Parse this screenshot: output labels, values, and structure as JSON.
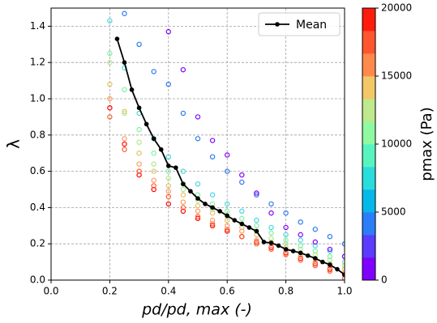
{
  "chart_data": {
    "type": "scatter",
    "x_label": "pd/pd, max (-)",
    "y_label": "λ",
    "xlim": [
      0,
      1.0
    ],
    "ylim": [
      0,
      1.5
    ],
    "xticks": [
      {
        "value": 0,
        "label": "0.0"
      },
      {
        "value": 0.2,
        "label": "0.2"
      },
      {
        "value": 0.4,
        "label": "0.4"
      },
      {
        "value": 0.6,
        "label": "0.6"
      },
      {
        "value": 0.8,
        "label": "0.8"
      },
      {
        "value": 1.0,
        "label": "1.0"
      }
    ],
    "yticks": [
      {
        "value": 0,
        "label": "0.0"
      },
      {
        "value": 0.2,
        "label": "0.2"
      },
      {
        "value": 0.4,
        "label": "0.4"
      },
      {
        "value": 0.6,
        "label": "0.6"
      },
      {
        "value": 0.8,
        "label": "0.8"
      },
      {
        "value": 1.0,
        "label": "1.0"
      },
      {
        "value": 1.2,
        "label": "1.2"
      },
      {
        "value": 1.4,
        "label": "1.4"
      }
    ],
    "grid": true,
    "legend": "upper right",
    "series": [
      {
        "color": "#ff0000",
        "x": [
          0.2,
          0.25,
          0.3,
          0.35,
          0.4,
          0.45,
          0.5,
          0.55,
          0.6,
          0.65,
          0.7,
          0.75,
          0.8,
          0.85,
          0.9,
          0.95,
          1.0
        ],
        "values": [
          0.95,
          0.75,
          0.58,
          0.5,
          0.42,
          0.38,
          0.34,
          0.3,
          0.27,
          0.24,
          0.21,
          0.18,
          0.15,
          0.12,
          0.09,
          0.06,
          0.03
        ]
      },
      {
        "color": "#ff5a2a",
        "x": [
          0.2,
          0.25,
          0.3,
          0.35,
          0.4,
          0.45,
          0.5,
          0.55,
          0.6,
          0.65,
          0.7,
          0.75,
          0.8,
          0.85,
          0.9,
          0.95,
          1.0
        ],
        "values": [
          0.9,
          0.72,
          0.6,
          0.52,
          0.46,
          0.4,
          0.35,
          0.31,
          0.28,
          0.24,
          0.2,
          0.17,
          0.14,
          0.11,
          0.08,
          0.05,
          0.01
        ]
      },
      {
        "color": "#ff9a60",
        "x": [
          0.2,
          0.25,
          0.3,
          0.35,
          0.4,
          0.45,
          0.5,
          0.55,
          0.6,
          0.65,
          0.7,
          0.75,
          0.8,
          0.85,
          0.9,
          0.95,
          1.0
        ],
        "values": [
          1.0,
          0.78,
          0.64,
          0.55,
          0.49,
          0.43,
          0.38,
          0.33,
          0.3,
          0.27,
          0.22,
          0.19,
          0.16,
          0.13,
          0.1,
          0.07,
          0.04
        ]
      },
      {
        "color": "#e8c060",
        "x": [
          0.2,
          0.25,
          0.3,
          0.35,
          0.4,
          0.45,
          0.5,
          0.55,
          0.6,
          0.65,
          0.7,
          0.75,
          0.8,
          0.85,
          0.9,
          0.95,
          1.0
        ],
        "values": [
          1.08,
          0.93,
          0.7,
          0.6,
          0.52,
          0.47,
          0.41,
          0.37,
          0.33,
          0.29,
          0.25,
          0.21,
          0.18,
          0.15,
          0.12,
          0.09,
          0.06
        ]
      },
      {
        "color": "#b0e890",
        "x": [
          0.2,
          0.25,
          0.3,
          0.35,
          0.4,
          0.45,
          0.5,
          0.55,
          0.6,
          0.65,
          0.7,
          0.75,
          0.8,
          0.85,
          0.9,
          0.95,
          1.0
        ],
        "values": [
          1.2,
          0.92,
          0.76,
          0.64,
          0.56,
          0.5,
          0.44,
          0.39,
          0.35,
          0.31,
          0.27,
          0.23,
          0.2,
          0.17,
          0.14,
          0.11,
          0.08
        ]
      },
      {
        "color": "#80f0a0",
        "x": [
          0.2,
          0.25,
          0.3,
          0.35,
          0.4,
          0.45,
          0.5,
          0.55,
          0.6,
          0.65,
          0.7,
          0.75,
          0.8,
          0.85,
          0.9,
          0.95,
          1.0
        ],
        "values": [
          1.25,
          1.05,
          0.83,
          0.7,
          0.6,
          0.53,
          0.47,
          0.42,
          0.38,
          0.34,
          0.3,
          0.26,
          0.22,
          0.19,
          0.16,
          0.13,
          0.1
        ]
      },
      {
        "color": "#40d8e0",
        "x": [
          0.2,
          0.25,
          0.3,
          0.35,
          0.4,
          0.45,
          0.5,
          0.55,
          0.6,
          0.65,
          0.7,
          0.75,
          0.8,
          0.85,
          0.9,
          0.95,
          1.0
        ],
        "values": [
          1.43,
          1.17,
          0.92,
          0.78,
          0.68,
          0.6,
          0.53,
          0.47,
          0.42,
          0.38,
          0.33,
          0.29,
          0.25,
          0.22,
          0.19,
          0.16,
          0.13
        ]
      },
      {
        "color": "#2878f0",
        "x": [
          0.25,
          0.3,
          0.35,
          0.4,
          0.45,
          0.5,
          0.55,
          0.6,
          0.65,
          0.7,
          0.75,
          0.8,
          0.85,
          0.9,
          0.95,
          1.0
        ],
        "values": [
          1.47,
          1.3,
          1.15,
          1.08,
          0.92,
          0.78,
          0.68,
          0.6,
          0.54,
          0.47,
          0.42,
          0.37,
          0.32,
          0.28,
          0.24,
          0.2
        ]
      },
      {
        "color": "#8000ff",
        "x": [
          0.4,
          0.45,
          0.5,
          0.55,
          0.6,
          0.65,
          0.7,
          0.75,
          0.8,
          0.85,
          0.9,
          0.95,
          1.0
        ],
        "values": [
          1.37,
          1.16,
          0.9,
          0.77,
          0.69,
          0.58,
          0.48,
          0.37,
          0.29,
          0.25,
          0.21,
          0.17,
          0.13
        ]
      },
      {
        "type": "line",
        "name": "Mean",
        "color": "#000000",
        "x": [
          0.225,
          0.25,
          0.275,
          0.3,
          0.325,
          0.35,
          0.375,
          0.4,
          0.425,
          0.45,
          0.475,
          0.5,
          0.525,
          0.55,
          0.575,
          0.6,
          0.625,
          0.65,
          0.675,
          0.7,
          0.725,
          0.75,
          0.775,
          0.8,
          0.825,
          0.85,
          0.875,
          0.9,
          0.925,
          0.95,
          0.975,
          1.0
        ],
        "values": [
          1.33,
          1.2,
          1.05,
          0.95,
          0.86,
          0.78,
          0.72,
          0.63,
          0.62,
          0.53,
          0.49,
          0.45,
          0.42,
          0.4,
          0.38,
          0.355,
          0.33,
          0.31,
          0.29,
          0.27,
          0.21,
          0.205,
          0.19,
          0.17,
          0.16,
          0.15,
          0.135,
          0.12,
          0.1,
          0.085,
          0.06,
          0.03
        ]
      }
    ],
    "colorbar": {
      "label": "pmax (Pa)",
      "lim": [
        0,
        20000
      ],
      "ticks": [
        0,
        5000,
        10000,
        15000,
        20000
      ],
      "colors": [
        "#8000ff",
        "#5a3cfe",
        "#2c7ef8",
        "#04b9ea",
        "#2adddd",
        "#58f4c0",
        "#8efaa2",
        "#c0e88c",
        "#f2c868",
        "#ff8a4c",
        "#ff5630",
        "#ff1c0e"
      ]
    }
  }
}
